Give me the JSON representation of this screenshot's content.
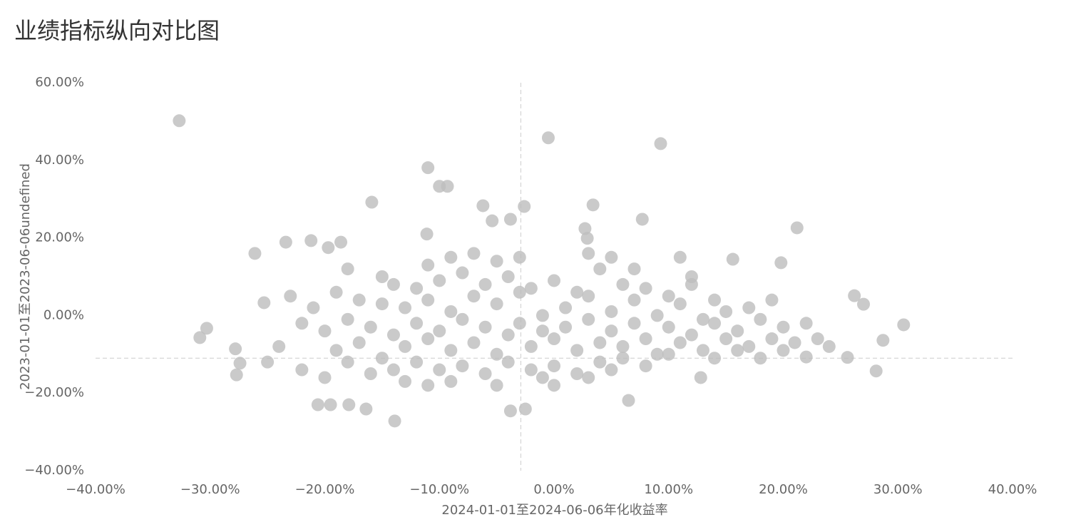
{
  "chart_data": {
    "type": "scatter",
    "title": "业绩指标纵向对比图",
    "x_label": "2024-01-01至2024-06-06年化收益率",
    "y_label": "2023-01-01至2023-06-06undefined",
    "color": "#bdbdbd",
    "xlim": [
      -40,
      40
    ],
    "xticks": [
      {
        "value": -40,
        "label": "−40.00%"
      },
      {
        "value": -30,
        "label": "−30.00%"
      },
      {
        "value": -20,
        "label": "−20.00%"
      },
      {
        "value": -10,
        "label": "−10.00%"
      },
      {
        "value": 0,
        "label": "0.00%"
      },
      {
        "value": 10,
        "label": "10.00%"
      },
      {
        "value": 20,
        "label": "20.00%"
      },
      {
        "value": 30,
        "label": "30.00%"
      },
      {
        "value": 40,
        "label": "40.00%"
      }
    ],
    "ylim": [
      -40,
      60
    ],
    "yticks": [
      {
        "value": -40,
        "label": "−40.00%"
      },
      {
        "value": -20,
        "label": "−20.00%"
      },
      {
        "value": 0,
        "label": "0.00%"
      },
      {
        "value": 20,
        "label": "20.00%"
      },
      {
        "value": 40,
        "label": "40.00%"
      },
      {
        "value": 60,
        "label": "60.00%"
      }
    ],
    "x_reference": -2.9,
    "y_reference": -11,
    "x": [
      -32.7,
      -0.5,
      9.3,
      -11,
      -10,
      -9.3,
      -15.9,
      -6.2,
      -2.6,
      3.4,
      -3.8,
      -5.4,
      7.7,
      21.2,
      -30.9,
      -30.3,
      -27.8,
      -27.7,
      -27.4,
      -26.1,
      -25.3,
      -13.9,
      -3.8,
      -2.5,
      -16.4,
      -20.6,
      -19.5,
      -17.9,
      6.5,
      30.5,
      28.7,
      28.1,
      27,
      26.2,
      25.6,
      22,
      12.8,
      19.8,
      15.6,
      -21.2,
      -23.4,
      -18.6,
      -19.7,
      -11.1,
      2.7,
      2.9,
      -14,
      -13,
      -12,
      -11,
      -10,
      -9,
      -8,
      -7,
      -6,
      -5,
      -4,
      -3,
      -2,
      -1,
      0,
      1,
      2,
      3,
      4,
      5,
      6,
      7,
      8,
      9,
      10,
      11,
      12,
      13,
      14,
      15,
      -13,
      -11,
      -9,
      -7,
      -5,
      -3,
      -1,
      1,
      3,
      5,
      7,
      9,
      11,
      13,
      15,
      -12,
      -10,
      -8,
      -6,
      -4,
      -2,
      0,
      2,
      4,
      6,
      8,
      10,
      -15,
      -14,
      -9,
      -5,
      -1,
      3,
      -10,
      -8,
      -6,
      -4,
      -2,
      0,
      2,
      4,
      6,
      -12,
      -14,
      8,
      10,
      12,
      -16,
      -17,
      -18,
      -19,
      -20,
      -21,
      -22,
      -23,
      -19,
      -17,
      -15,
      16,
      17,
      18,
      19,
      20,
      21,
      22,
      17,
      19,
      16,
      18,
      23,
      24,
      14,
      12,
      -24,
      -25,
      -22,
      -20,
      -18,
      -16,
      -13,
      -11,
      0,
      5,
      14,
      20,
      -9,
      -7,
      -5,
      3,
      5,
      -3,
      -11,
      -15,
      -18,
      7,
      11
    ],
    "values": [
      50.2,
      45.8,
      44.3,
      38.1,
      33.3,
      33.3,
      29.2,
      28.3,
      28.1,
      28.5,
      24.8,
      24.4,
      24.8,
      22.6,
      -5.7,
      -3.3,
      -8.6,
      -15.3,
      -12.3,
      16,
      3.3,
      -27.2,
      -24.6,
      -24.1,
      -24.1,
      -23,
      -23,
      -23,
      -21.9,
      -2.4,
      -6.4,
      -14.3,
      2.9,
      5.1,
      -10.8,
      -10.7,
      -16,
      13.6,
      14.5,
      19.3,
      18.9,
      18.9,
      17.5,
      21,
      22.4,
      19.9,
      -5,
      -8,
      -2,
      -6,
      -4,
      -9,
      -1,
      -7,
      -3,
      -10,
      -5,
      -2,
      -8,
      -4,
      -6,
      -3,
      -9,
      -1,
      -7,
      -4,
      -8,
      -2,
      -6,
      -10,
      -3,
      -7,
      -5,
      -9,
      -2,
      -6,
      2,
      4,
      1,
      5,
      3,
      6,
      0,
      2,
      5,
      1,
      4,
      0,
      3,
      -1,
      1,
      -12,
      -14,
      -13,
      -15,
      -12,
      -14,
      -13,
      -15,
      -12,
      -11,
      -13,
      -10,
      -11,
      -14,
      -17,
      -18,
      -16,
      -16,
      9,
      11,
      8,
      10,
      7,
      9,
      6,
      12,
      8,
      7,
      8,
      7,
      5,
      8,
      -3,
      -7,
      -1,
      -9,
      -4,
      2,
      -2,
      5,
      6,
      4,
      3,
      -4,
      -8,
      -1,
      -6,
      -3,
      -7,
      -2,
      2,
      4,
      -9,
      -11,
      -6,
      -8,
      4,
      10,
      -8,
      -12,
      -14,
      -16,
      -12,
      -15,
      -17,
      -18,
      -18,
      -14,
      -11,
      -9,
      15,
      16,
      14,
      16,
      15,
      15,
      13,
      10,
      12,
      12,
      15
    ]
  }
}
